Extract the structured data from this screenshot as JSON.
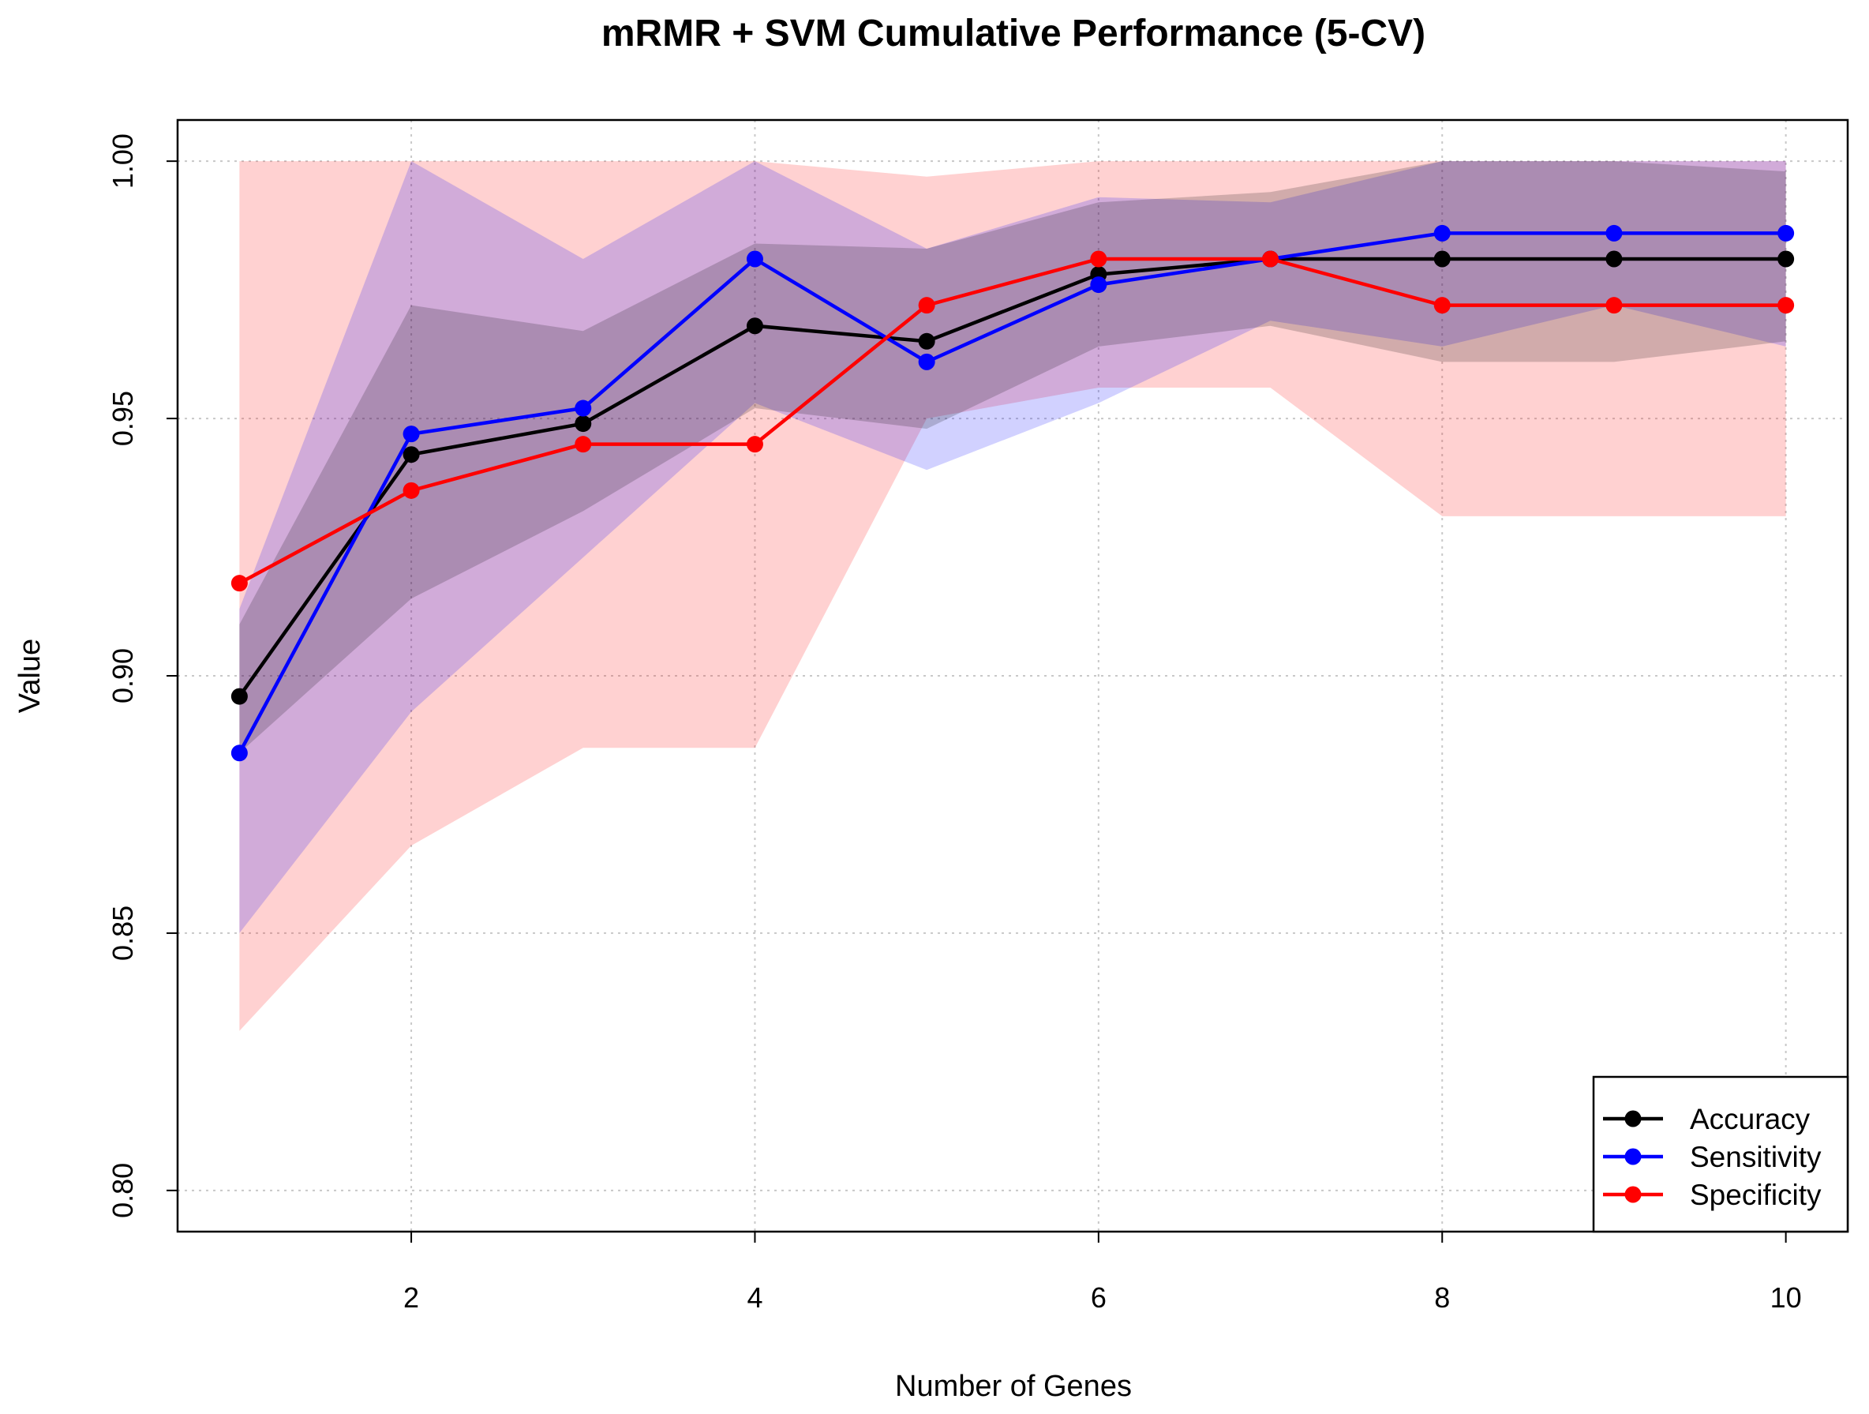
{
  "chart_data": {
    "type": "line",
    "title": "mRMR + SVM Cumulative Performance (5-CV)",
    "x_label": "Number of Genes",
    "y_label": "Value",
    "x": [
      1,
      2,
      3,
      4,
      5,
      6,
      7,
      8,
      9,
      10
    ],
    "xlim": [
      0.64,
      10.36
    ],
    "xticks": [
      2,
      4,
      6,
      8,
      10
    ],
    "ylim": [
      0.792,
      1.008
    ],
    "yticks": [
      {
        "value": 0.8,
        "label": "0.80"
      },
      {
        "value": 0.85,
        "label": "0.85"
      },
      {
        "value": 0.9,
        "label": "0.90"
      },
      {
        "value": 0.95,
        "label": "0.95"
      },
      {
        "value": 1.0,
        "label": "1.00"
      }
    ],
    "grid": true,
    "legend": "bottomright",
    "series": [
      {
        "name": "Accuracy",
        "color": "#000000",
        "values": [
          0.896,
          0.943,
          0.949,
          0.968,
          0.965,
          0.978,
          0.981,
          0.981,
          0.981,
          0.981
        ],
        "lower": [
          0.885,
          0.915,
          0.932,
          0.952,
          0.948,
          0.964,
          0.968,
          0.961,
          0.961,
          0.965
        ],
        "upper": [
          0.91,
          0.972,
          0.967,
          0.984,
          0.983,
          0.992,
          0.994,
          1.0,
          1.0,
          0.998
        ]
      },
      {
        "name": "Sensitivity",
        "color": "#0000ff",
        "values": [
          0.885,
          0.947,
          0.952,
          0.981,
          0.961,
          0.976,
          0.981,
          0.986,
          0.986,
          0.986
        ],
        "lower": [
          0.85,
          0.893,
          0.923,
          0.953,
          0.94,
          0.953,
          0.969,
          0.964,
          0.972,
          0.964
        ],
        "upper": [
          0.913,
          1.0,
          0.981,
          1.0,
          0.983,
          0.993,
          0.992,
          1.0,
          1.0,
          1.0
        ]
      },
      {
        "name": "Specificity",
        "color": "#ff0000",
        "values": [
          0.918,
          0.936,
          0.945,
          0.945,
          0.972,
          0.981,
          0.981,
          0.972,
          0.972,
          0.972
        ],
        "lower": [
          0.831,
          0.867,
          0.886,
          0.886,
          0.95,
          0.956,
          0.956,
          0.931,
          0.931,
          0.931
        ],
        "upper": [
          1.0,
          1.0,
          1.0,
          1.0,
          0.997,
          1.0,
          1.0,
          1.0,
          1.0,
          1.0
        ]
      }
    ]
  }
}
